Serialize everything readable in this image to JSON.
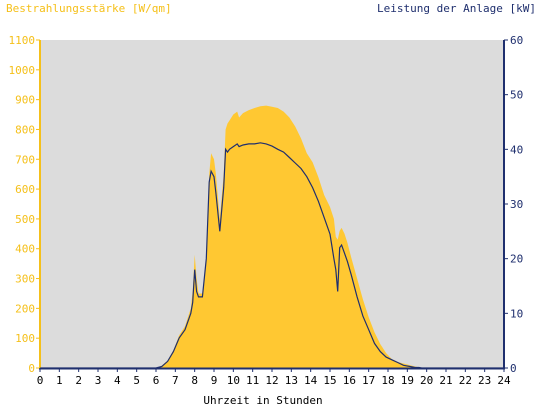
{
  "chart_data": {
    "type": "area",
    "title_left": "Bestrahlungsstärke [W/qm]",
    "title_right": "Leistung der Anlage [kW]",
    "xlabel": "Uhrzeit in Stunden",
    "x_ticks": [
      "0",
      "1",
      "2",
      "3",
      "4",
      "5",
      "6",
      "7",
      "8",
      "9",
      "10",
      "11",
      "12",
      "13",
      "14",
      "15",
      "16",
      "17",
      "18",
      "19",
      "20",
      "21",
      "22",
      "23",
      "24"
    ],
    "y_left_ticks": [
      "0",
      "100",
      "200",
      "300",
      "400",
      "500",
      "600",
      "700",
      "800",
      "900",
      "1000",
      "1100"
    ],
    "y_right_ticks": [
      "0",
      "10",
      "20",
      "30",
      "40",
      "50",
      "60"
    ],
    "xlim": [
      0,
      24
    ],
    "ylim_left": [
      0,
      1100
    ],
    "ylim_right": [
      0,
      60
    ],
    "grid": false,
    "colors": {
      "plot_background": "#dcdcdc",
      "irradiance_fill": "#ffc832",
      "power_line": "#1f2f6e",
      "left_axis": "#f5c01a",
      "right_axis": "#1f2f6e"
    },
    "series": [
      {
        "axis": "left",
        "style": "area",
        "x": [
          0,
          6.0,
          6.3,
          6.6,
          6.9,
          7.2,
          7.5,
          7.8,
          7.9,
          8.0,
          8.1,
          8.2,
          8.4,
          8.6,
          8.75,
          8.85,
          9.0,
          9.1,
          9.3,
          9.5,
          9.6,
          9.7,
          9.8,
          10.0,
          10.2,
          10.3,
          10.5,
          10.8,
          11.1,
          11.4,
          11.7,
          12.0,
          12.3,
          12.6,
          12.9,
          13.2,
          13.5,
          13.8,
          14.1,
          14.4,
          14.7,
          15.0,
          15.2,
          15.3,
          15.4,
          15.5,
          15.6,
          15.75,
          15.9,
          16.1,
          16.4,
          16.7,
          17.0,
          17.3,
          17.6,
          17.9,
          18.2,
          18.5,
          18.8,
          19.1,
          19.4,
          19.6,
          19.75,
          19.85,
          24
        ],
        "y": [
          0,
          0,
          8,
          25,
          60,
          110,
          140,
          200,
          260,
          380,
          300,
          250,
          250,
          370,
          650,
          720,
          700,
          650,
          500,
          650,
          800,
          820,
          830,
          850,
          860,
          840,
          855,
          865,
          872,
          878,
          880,
          876,
          872,
          860,
          840,
          810,
          770,
          720,
          690,
          640,
          580,
          540,
          500,
          440,
          430,
          460,
          470,
          450,
          420,
          370,
          300,
          230,
          170,
          120,
          80,
          50,
          30,
          20,
          15,
          10,
          5,
          2,
          0,
          0,
          0
        ]
      },
      {
        "axis": "right",
        "style": "line",
        "x": [
          0,
          6.0,
          6.3,
          6.6,
          6.9,
          7.2,
          7.5,
          7.8,
          7.9,
          8.0,
          8.1,
          8.2,
          8.4,
          8.6,
          8.75,
          8.85,
          9.0,
          9.1,
          9.3,
          9.5,
          9.6,
          9.7,
          9.8,
          10.0,
          10.2,
          10.3,
          10.5,
          10.8,
          11.1,
          11.4,
          11.7,
          12.0,
          12.3,
          12.6,
          12.9,
          13.2,
          13.5,
          13.8,
          14.1,
          14.4,
          14.7,
          15.0,
          15.2,
          15.3,
          15.4,
          15.5,
          15.6,
          15.75,
          15.9,
          16.1,
          16.4,
          16.7,
          17.0,
          17.3,
          17.6,
          17.9,
          18.2,
          18.5,
          18.8,
          19.1,
          19.4,
          19.6,
          19.75,
          19.85,
          24
        ],
        "y": [
          0,
          0,
          0.3,
          1.2,
          3.0,
          5.5,
          7.0,
          10.0,
          12.0,
          18.0,
          14.0,
          13.0,
          13.0,
          20.0,
          34.0,
          36.0,
          35.0,
          32.0,
          25.0,
          33.0,
          40.0,
          39.5,
          40.0,
          40.5,
          41.0,
          40.5,
          40.8,
          41.0,
          41.0,
          41.2,
          41.0,
          40.6,
          40.0,
          39.5,
          38.5,
          37.5,
          36.5,
          35.0,
          33.0,
          30.5,
          27.5,
          24.5,
          20.0,
          18.0,
          14.0,
          22.0,
          22.5,
          21.0,
          19.5,
          17.0,
          13.0,
          9.5,
          7.0,
          4.5,
          3.0,
          2.0,
          1.5,
          1.0,
          0.5,
          0.3,
          0.1,
          0.1,
          0,
          0,
          0
        ]
      }
    ]
  }
}
